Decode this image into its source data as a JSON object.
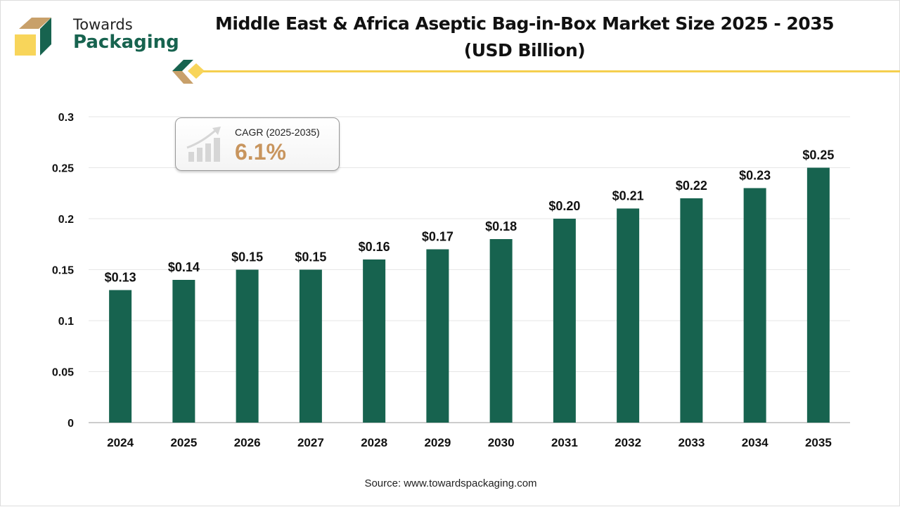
{
  "header": {
    "title_line1": "Middle East & Africa Aseptic Bag-in-Box Market Size 2025 - 2035",
    "title_line2": "(USD Billion)"
  },
  "logo": {
    "line1": "Towards",
    "line2": "Packaging"
  },
  "cagr": {
    "label": "CAGR (2025-2035)",
    "value": "6.1%",
    "icon": "growth-chart-icon"
  },
  "source": "Source: www.towardspackaging.com",
  "colors": {
    "bar": "#17634f",
    "accent": "#f5cf4e",
    "cagr": "#c8955e"
  },
  "chart_data": {
    "type": "bar",
    "categories": [
      "2024",
      "2025",
      "2026",
      "2027",
      "2028",
      "2029",
      "2030",
      "2031",
      "2032",
      "2033",
      "2034",
      "2035"
    ],
    "values": [
      0.13,
      0.14,
      0.15,
      0.15,
      0.16,
      0.17,
      0.18,
      0.2,
      0.21,
      0.22,
      0.23,
      0.25
    ],
    "data_labels": [
      "$0.13",
      "$0.14",
      "$0.15",
      "$0.15",
      "$0.16",
      "$0.17",
      "$0.18",
      "$0.20",
      "$0.21",
      "$0.22",
      "$0.23",
      "$0.25"
    ],
    "yticks": [
      "0",
      "0.05",
      "0.1",
      "0.15",
      "0.2",
      "0.25",
      "0.3"
    ],
    "ylim": [
      0,
      0.3
    ],
    "grid": true,
    "title": "Middle East & Africa Aseptic Bag-in-Box Market Size 2025 - 2035 (USD Billion)"
  }
}
